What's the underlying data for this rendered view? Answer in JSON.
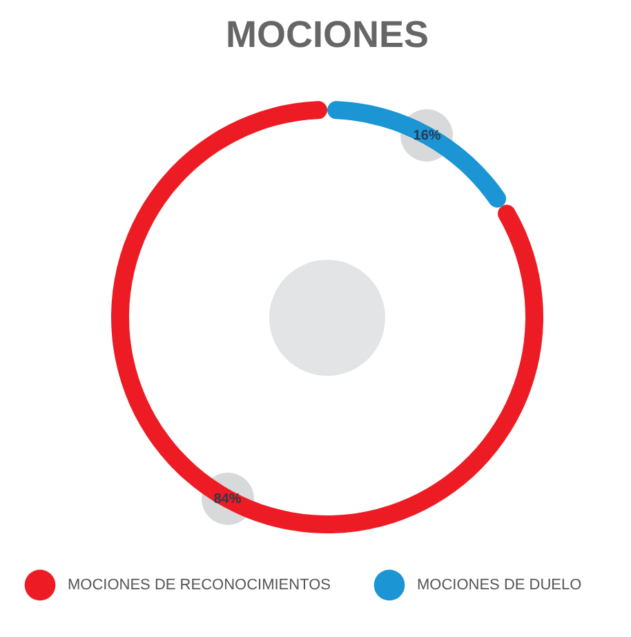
{
  "chart_data": {
    "type": "donut",
    "title": "MOCIONES",
    "categories": [
      "MOCIONES DE RECONOCIMIENTOS",
      "MOCIONES DE DUELO"
    ],
    "values": [
      84,
      16
    ],
    "value_labels": [
      "84%",
      "16%"
    ],
    "colors": [
      "#ed1c24",
      "#1b95d3"
    ],
    "legend": "bottom"
  }
}
